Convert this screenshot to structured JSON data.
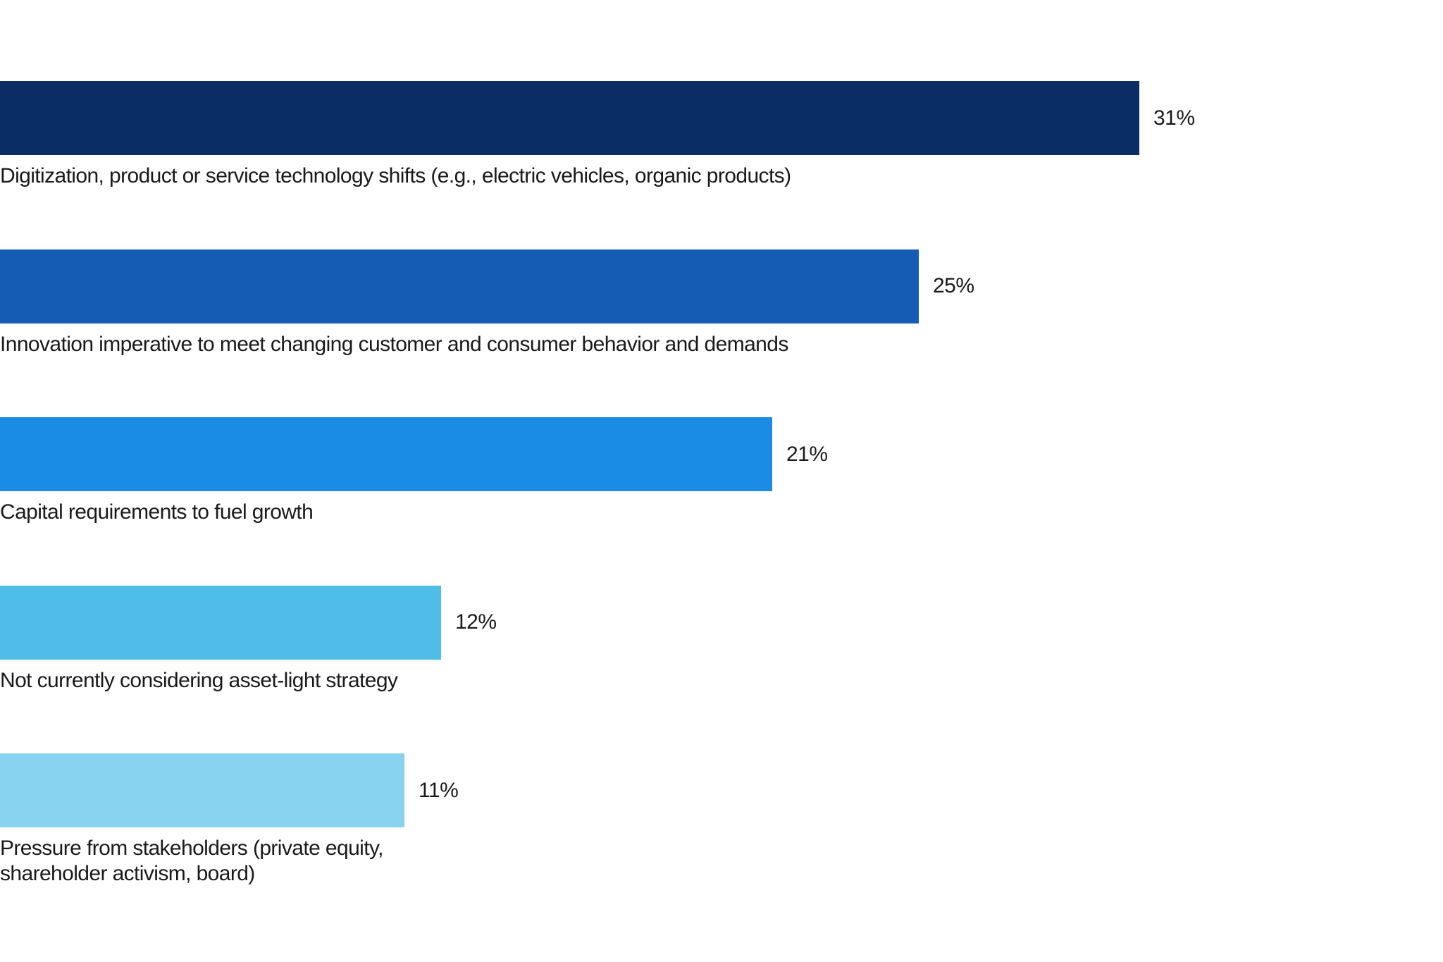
{
  "chart_data": {
    "type": "bar",
    "orientation": "horizontal",
    "title": "",
    "xlabel": "",
    "ylabel": "",
    "xlim": [
      0,
      34.5
    ],
    "grid": false,
    "legend": "none",
    "categories": [
      "Digitization, product or service technology shifts (e.g., electric vehicles, organic products)",
      "Innovation imperative to meet changing customer and consumer behavior and demands",
      "Capital requirements to fuel growth",
      "Not currently considering asset-light strategy",
      "Pressure from stakeholders (private equity,\nshareholder activism, board)"
    ],
    "values": [
      31,
      25,
      21,
      12,
      11
    ],
    "value_labels": [
      "31%",
      "25%",
      "21%",
      "12%",
      "11%"
    ],
    "colors": [
      "#0a2d66",
      "#155cb4",
      "#1a8ce6",
      "#4ebde8",
      "#88d3f0"
    ]
  }
}
